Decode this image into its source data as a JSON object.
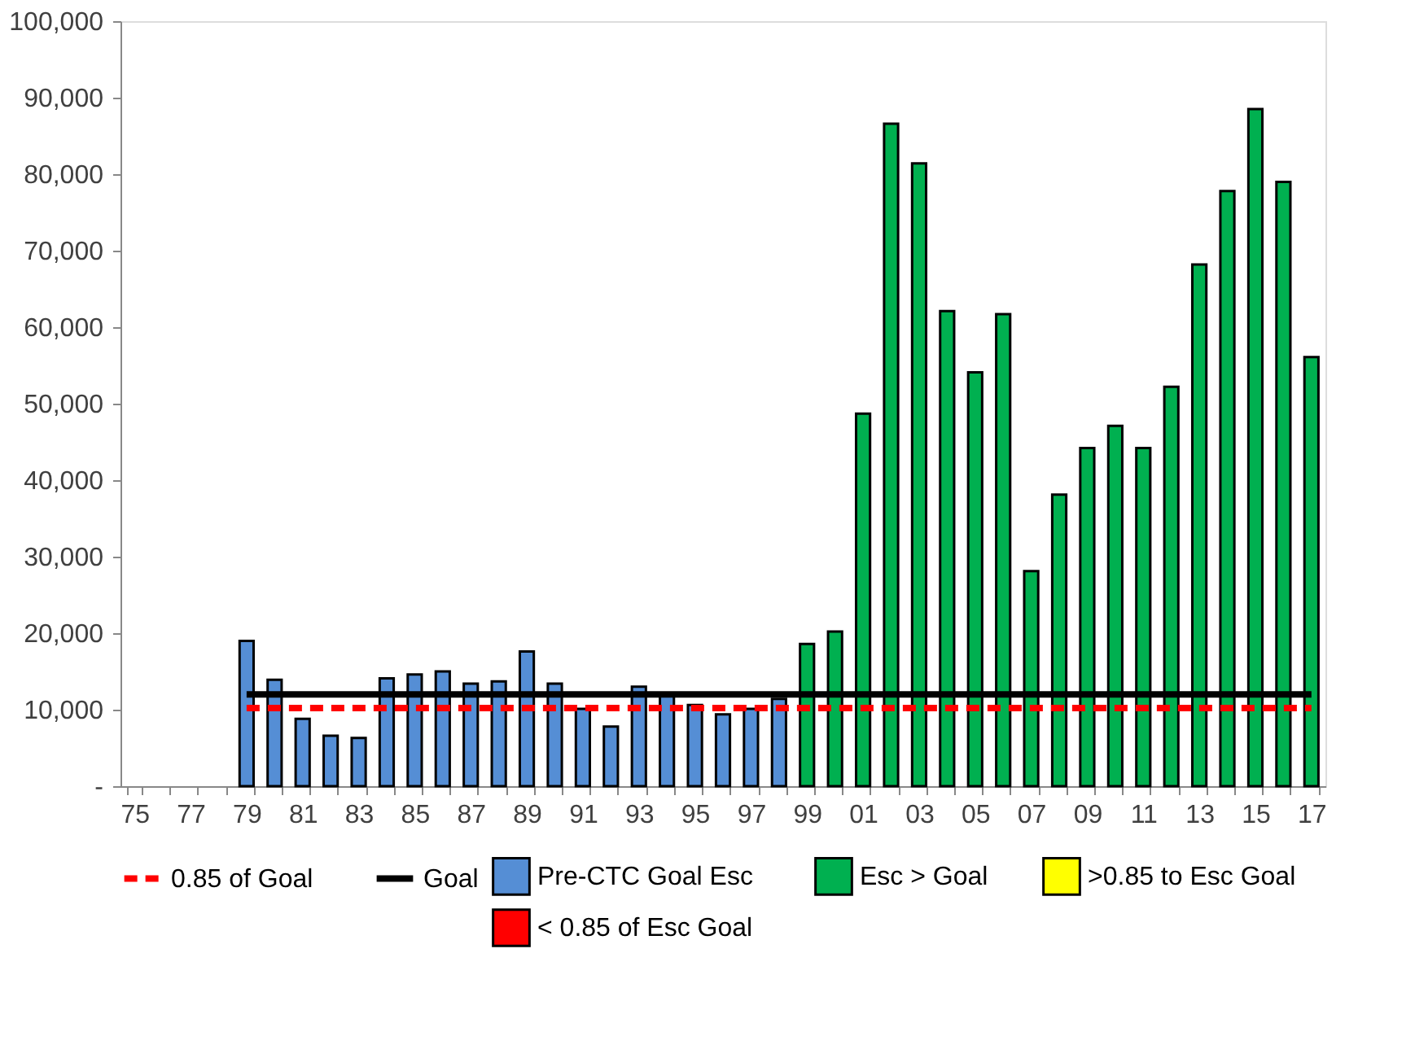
{
  "chart_data": {
    "type": "bar",
    "categories": [
      "75",
      null,
      "77",
      null,
      "79",
      null,
      "81",
      null,
      "83",
      null,
      "85",
      null,
      "87",
      null,
      "89",
      null,
      "91",
      null,
      "93",
      null,
      "95",
      null,
      "97",
      null,
      "99",
      null,
      "01",
      null,
      "03",
      null,
      "05",
      null,
      "07",
      null,
      "09",
      null,
      "11",
      null,
      "13",
      null,
      "15",
      null,
      "17"
    ],
    "series": [
      {
        "name": "Pre-CTC Goal Esc",
        "color": "#558ed5",
        "values": [
          null,
          null,
          null,
          null,
          19000,
          13900,
          8800,
          6600,
          6300,
          14100,
          14600,
          15000,
          13400,
          13700,
          17600,
          13400,
          10100,
          7800,
          13000,
          11800,
          10600,
          9400,
          10100,
          11400,
          null,
          null,
          null,
          null,
          null,
          null,
          null,
          null,
          null,
          null,
          null,
          null,
          null,
          null,
          null,
          null,
          null,
          null,
          null
        ]
      },
      {
        "name": "Esc > Goal",
        "color": "#00b050",
        "values": [
          null,
          null,
          null,
          null,
          null,
          null,
          null,
          null,
          null,
          null,
          null,
          null,
          null,
          null,
          null,
          null,
          null,
          null,
          null,
          null,
          null,
          null,
          null,
          null,
          18600,
          20200,
          48700,
          86600,
          81400,
          62100,
          54100,
          61700,
          28100,
          38100,
          44200,
          47100,
          44200,
          52200,
          68200,
          77800,
          88500,
          79000,
          56100
        ]
      },
      {
        "name": ">0.85 to  Esc Goal",
        "color": "#ffff00",
        "values": [
          null,
          null,
          null,
          null,
          null,
          null,
          null,
          null,
          null,
          null,
          null,
          null,
          null,
          null,
          null,
          null,
          null,
          null,
          null,
          null,
          null,
          null,
          null,
          null,
          null,
          null,
          null,
          null,
          null,
          null,
          null,
          null,
          null,
          null,
          null,
          null,
          null,
          null,
          null,
          null,
          null,
          null,
          null
        ]
      },
      {
        "name": "< 0.85 of  Esc Goal",
        "color": "#ff0000",
        "values": [
          null,
          null,
          null,
          null,
          null,
          null,
          null,
          null,
          null,
          null,
          null,
          null,
          null,
          null,
          null,
          null,
          null,
          null,
          null,
          null,
          null,
          null,
          null,
          null,
          null,
          null,
          null,
          null,
          null,
          null,
          null,
          null,
          null,
          null,
          null,
          null,
          null,
          null,
          null,
          null,
          null,
          null,
          null
        ]
      },
      {
        "name": "0.85 of Goal",
        "type": "line",
        "line_style": "dashed",
        "color": "#ff0000",
        "values": [
          null,
          null,
          null,
          null,
          10200,
          10200,
          10200,
          10200,
          10200,
          10200,
          10200,
          10200,
          10200,
          10200,
          10200,
          10200,
          10200,
          10200,
          10200,
          10200,
          10200,
          10200,
          10200,
          10200,
          10200,
          10200,
          10200,
          10200,
          10200,
          10200,
          10200,
          10200,
          10200,
          10200,
          10200,
          10200,
          10200,
          10200,
          10200,
          10200,
          10200,
          10200,
          10200
        ]
      },
      {
        "name": "Goal",
        "type": "line",
        "line_style": "solid",
        "color": "#000000",
        "values": [
          null,
          null,
          null,
          null,
          12000,
          12000,
          12000,
          12000,
          12000,
          12000,
          12000,
          12000,
          12000,
          12000,
          12000,
          12000,
          12000,
          12000,
          12000,
          12000,
          12000,
          12000,
          12000,
          12000,
          12000,
          12000,
          12000,
          12000,
          12000,
          12000,
          12000,
          12000,
          12000,
          12000,
          12000,
          12000,
          12000,
          12000,
          12000,
          12000,
          12000,
          12000,
          12000
        ]
      }
    ],
    "ylim": [
      0,
      100000
    ],
    "yticks": [
      {
        "value": 0,
        "label": "-"
      },
      {
        "value": 10000,
        "label": "10,000"
      },
      {
        "value": 20000,
        "label": "20,000"
      },
      {
        "value": 30000,
        "label": "30,000"
      },
      {
        "value": 40000,
        "label": "40,000"
      },
      {
        "value": 50000,
        "label": "50,000"
      },
      {
        "value": 60000,
        "label": "60,000"
      },
      {
        "value": 70000,
        "label": "70,000"
      },
      {
        "value": 80000,
        "label": "80,000"
      },
      {
        "value": 90000,
        "label": "90,000"
      },
      {
        "value": 100000,
        "label": "100,000"
      }
    ],
    "grid": false,
    "legend": "bottom"
  }
}
